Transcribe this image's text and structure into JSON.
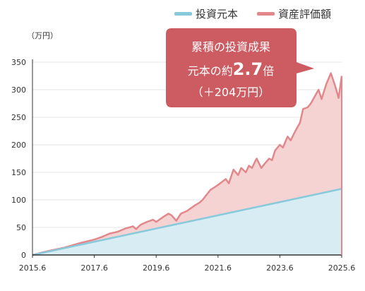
{
  "colors": {
    "principal_line": "#88c9dc",
    "principal_fill": "#d8edf3",
    "value_line": "#e2878b",
    "value_fill": "#f4d3d2",
    "callout_bg": "#cd5c62",
    "axis": "#333333",
    "grid": "#e6e6e6"
  },
  "chart_data": {
    "type": "area",
    "unit_label": "（万円）",
    "x_range": [
      2015.5,
      2025.5
    ],
    "ylim": [
      0,
      350
    ],
    "y_ticks": [
      0,
      50,
      100,
      150,
      200,
      250,
      300,
      350
    ],
    "x_tick_labels": [
      "2015.6",
      "2017.6",
      "2019.6",
      "2021.6",
      "2023.6",
      "2025.6"
    ],
    "legend_position": "top-right",
    "grid": true,
    "series": [
      {
        "name": "投資元本",
        "x": [
          2015.5,
          2025.5
        ],
        "values": [
          0,
          120
        ]
      },
      {
        "name": "資産評価額",
        "x": [
          2015.5,
          2016.0,
          2016.5,
          2017.0,
          2017.5,
          2017.75,
          2018.0,
          2018.25,
          2018.5,
          2018.75,
          2018.85,
          2019.0,
          2019.2,
          2019.4,
          2019.5,
          2019.75,
          2019.9,
          2020.0,
          2020.15,
          2020.3,
          2020.5,
          2020.75,
          2020.9,
          2021.0,
          2021.25,
          2021.5,
          2021.75,
          2021.85,
          2022.0,
          2022.15,
          2022.25,
          2022.4,
          2022.5,
          2022.6,
          2022.7,
          2022.75,
          2022.9,
          2023.0,
          2023.15,
          2023.25,
          2023.35,
          2023.5,
          2023.6,
          2023.75,
          2023.85,
          2024.0,
          2024.15,
          2024.25,
          2024.4,
          2024.5,
          2024.6,
          2024.75,
          2024.85,
          2025.0,
          2025.15,
          2025.3,
          2025.4,
          2025.5
        ],
        "values": [
          0,
          7,
          13,
          21,
          28,
          33,
          39,
          42,
          48,
          52,
          47,
          55,
          60,
          64,
          60,
          70,
          75,
          72,
          62,
          75,
          80,
          90,
          95,
          100,
          118,
          127,
          138,
          130,
          155,
          145,
          158,
          150,
          162,
          158,
          170,
          175,
          158,
          165,
          175,
          172,
          190,
          200,
          195,
          215,
          208,
          225,
          240,
          265,
          268,
          275,
          285,
          300,
          283,
          310,
          330,
          305,
          285,
          325
        ]
      }
    ]
  },
  "callout": {
    "line1": "累積の投資成果",
    "line2_prefix": "元本の約",
    "line2_value": "2.7",
    "line2_suffix": "倍",
    "line3": "（＋204万円）"
  }
}
